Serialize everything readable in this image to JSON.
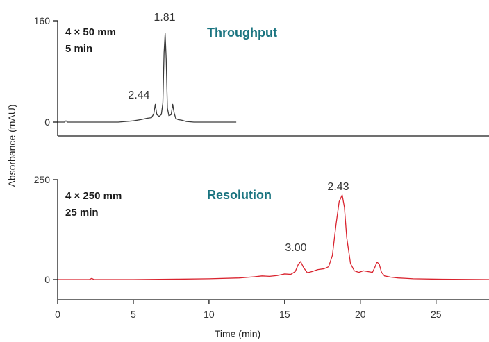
{
  "chart_data": [
    {
      "type": "line",
      "ylim": [
        0,
        160
      ],
      "yticks": [
        0,
        160
      ],
      "ytick_labels": [
        "0",
        "160"
      ],
      "xlim": [
        0,
        28.5
      ],
      "conditions": [
        "4 × 50 mm",
        "5 min"
      ],
      "panel_title": "Throughput",
      "color": "#3a3a3a",
      "title_color": "#1a7480",
      "peak_labels": [
        {
          "text": "1.81",
          "x": 7.1,
          "y": 140
        },
        {
          "text": "2.44",
          "x": 6.5,
          "y": 29
        }
      ],
      "series": [
        {
          "x": [
            0,
            0.45,
            0.55,
            0.65,
            1.0,
            4.0,
            4.5,
            5.0,
            5.5,
            5.9,
            6.2,
            6.35,
            6.45,
            6.55,
            6.7,
            6.85,
            6.95,
            7.03,
            7.1,
            7.17,
            7.25,
            7.35,
            7.5,
            7.6,
            7.7,
            7.8,
            7.95,
            8.2,
            8.5,
            9.0,
            11.8
          ],
          "y": [
            0,
            0,
            2,
            0,
            0,
            0,
            1,
            2,
            4,
            6,
            7,
            13,
            28,
            12,
            9,
            12,
            30,
            110,
            140,
            100,
            22,
            10,
            12,
            28,
            14,
            6,
            4,
            3,
            1,
            0,
            0
          ]
        }
      ]
    },
    {
      "type": "line",
      "ylim": [
        0,
        250
      ],
      "yticks": [
        0,
        250
      ],
      "ytick_labels": [
        "0",
        "250"
      ],
      "xlim": [
        0,
        28.5
      ],
      "xticks": [
        0,
        5,
        10,
        15,
        20,
        25
      ],
      "xtick_labels": [
        "0",
        "5",
        "10",
        "15",
        "20",
        "25"
      ],
      "xlabel": "Time (min)",
      "conditions": [
        "4 × 250 mm",
        "25 min"
      ],
      "panel_title": "Resolution",
      "color": "#d9232e",
      "title_color": "#1a7480",
      "peak_labels": [
        {
          "text": "3.00",
          "x": 15.9,
          "y": 62
        },
        {
          "text": "2.43",
          "x": 18.8,
          "y": 212
        }
      ],
      "series": [
        {
          "x": [
            0,
            2.1,
            2.25,
            2.4,
            2.6,
            5,
            8,
            10,
            12,
            13,
            13.5,
            14,
            14.5,
            15,
            15.4,
            15.7,
            15.9,
            16.05,
            16.25,
            16.5,
            16.8,
            17.2,
            17.6,
            17.9,
            18.15,
            18.4,
            18.6,
            18.8,
            18.95,
            19.1,
            19.35,
            19.6,
            19.9,
            20.2,
            20.5,
            20.8,
            20.95,
            21.1,
            21.25,
            21.4,
            21.6,
            22,
            22.5,
            23,
            23.5,
            25,
            28.5
          ],
          "y": [
            0,
            0,
            3,
            0,
            0,
            0,
            1,
            2,
            4,
            7,
            9,
            8,
            10,
            14,
            13,
            20,
            38,
            45,
            30,
            17,
            20,
            25,
            27,
            32,
            60,
            140,
            195,
            212,
            180,
            105,
            40,
            22,
            18,
            22,
            20,
            18,
            30,
            44,
            38,
            18,
            9,
            6,
            4,
            3,
            2,
            1,
            0
          ]
        }
      ]
    }
  ],
  "ylabel": "Absorbance (mAU)"
}
